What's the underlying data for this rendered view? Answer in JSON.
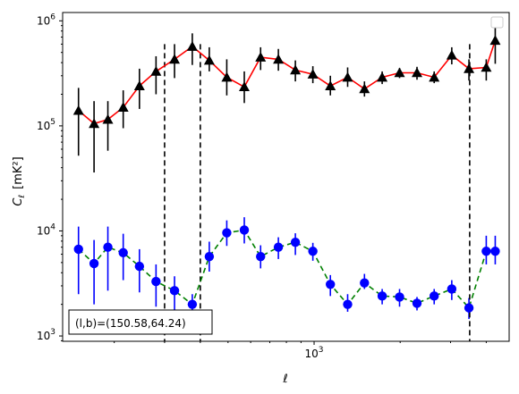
{
  "chart_data": {
    "type": "line",
    "x_scale": "log",
    "y_scale": "log",
    "xlabel": "ℓ",
    "ylabel_main": "C",
    "ylabel_sub": "ℓ",
    "ylabel_unit": "[mK²]",
    "xlim": [
      132,
      4810
    ],
    "ylim": [
      890,
      1200000
    ],
    "x_tick_labels": [
      {
        "value": 1000,
        "base": "10",
        "exp": "3"
      }
    ],
    "y_tick_labels": [
      {
        "value": 1000,
        "base": "10",
        "exp": "3"
      },
      {
        "value": 10000,
        "base": "10",
        "exp": "4"
      },
      {
        "value": 100000,
        "base": "10",
        "exp": "5"
      },
      {
        "value": 1000000,
        "base": "10",
        "exp": "6"
      }
    ],
    "x_minor_ticks": [
      200,
      300,
      400,
      500,
      600,
      700,
      800,
      900,
      2000,
      3000,
      4000
    ],
    "vlines": [
      300,
      400,
      3500
    ],
    "legend": {
      "placement": "upper right",
      "entries": []
    },
    "annotation": {
      "text": "(l,b)=(150.58,64.24)",
      "placement": "lower left"
    },
    "series": [
      {
        "line_color": "#ff0000",
        "line_style": "solid",
        "marker": "triangle",
        "marker_color": "#000000",
        "x": [
          150,
          170,
          190,
          215,
          245,
          280,
          325,
          375,
          430,
          495,
          570,
          650,
          750,
          860,
          990,
          1140,
          1310,
          1500,
          1730,
          1990,
          2290,
          2630,
          3030,
          3480,
          4000,
          4300
        ],
        "y": [
          140000,
          105000,
          115000,
          150000,
          240000,
          330000,
          430000,
          570000,
          420000,
          290000,
          235000,
          450000,
          430000,
          340000,
          310000,
          240000,
          290000,
          225000,
          290000,
          320000,
          320000,
          290000,
          470000,
          350000,
          360000,
          650000
        ],
        "err_low": [
          52000,
          36000,
          58000,
          95000,
          145000,
          200000,
          285000,
          380000,
          330000,
          195000,
          165000,
          340000,
          335000,
          265000,
          255000,
          195000,
          235000,
          190000,
          250000,
          285000,
          275000,
          255000,
          385000,
          270000,
          270000,
          390000
        ],
        "err_high": [
          230000,
          172000,
          172000,
          218000,
          350000,
          460000,
          600000,
          760000,
          560000,
          430000,
          330000,
          560000,
          540000,
          420000,
          370000,
          300000,
          360000,
          265000,
          330000,
          355000,
          365000,
          330000,
          560000,
          430000,
          430000,
          1000000
        ]
      },
      {
        "line_color": "#008000",
        "line_style": "dashed",
        "marker": "circle",
        "marker_color": "#0000ff",
        "x": [
          150,
          170,
          190,
          215,
          245,
          280,
          325,
          375,
          430,
          495,
          570,
          650,
          750,
          860,
          990,
          1140,
          1310,
          1500,
          1730,
          1990,
          2290,
          2630,
          3030,
          3480,
          4000,
          4300
        ],
        "y": [
          6700,
          4900,
          7000,
          6200,
          4600,
          3300,
          2700,
          2000,
          5700,
          9600,
          10200,
          5700,
          7000,
          7800,
          6400,
          3100,
          2000,
          3200,
          2400,
          2350,
          2050,
          2400,
          2800,
          1850,
          6400,
          6400
        ],
        "err_low": [
          2500,
          2000,
          2700,
          3400,
          2600,
          1900,
          1700,
          1400,
          4100,
          7200,
          7600,
          4400,
          5400,
          5900,
          5200,
          2400,
          1700,
          2800,
          2000,
          1900,
          1750,
          2000,
          2200,
          1450,
          4800,
          4800
        ],
        "err_high": [
          11000,
          8200,
          11000,
          9400,
          6700,
          4800,
          3700,
          2500,
          7900,
          12600,
          13500,
          7300,
          8700,
          9500,
          7700,
          3800,
          2500,
          3900,
          2800,
          2800,
          2350,
          2800,
          3400,
          2300,
          9000,
          9000
        ]
      }
    ]
  }
}
